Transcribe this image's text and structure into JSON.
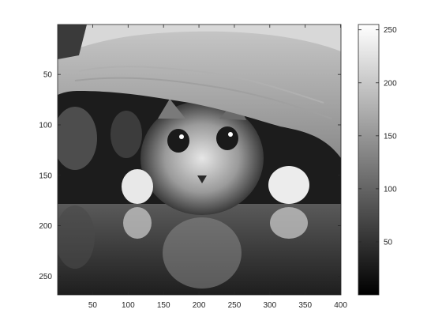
{
  "chart_data": {
    "type": "heatmap",
    "colormap": "gray",
    "image_description": "grayscale photograph of a kitten peeking out from under a blanket, paws forward, reflected on a glossy floor",
    "x_ticks": [
      50,
      100,
      150,
      200,
      250,
      300,
      350,
      400
    ],
    "y_ticks": [
      50,
      100,
      150,
      200,
      250
    ],
    "xlim": [
      0.5,
      400.5
    ],
    "ylim": [
      0.5,
      268.5
    ],
    "y_direction": "reverse",
    "colorbar": {
      "ticks": [
        50,
        100,
        150,
        200,
        250
      ],
      "clim": [
        0,
        255
      ],
      "location": "right"
    }
  },
  "colors": {
    "axis": "#262626",
    "background": "#ffffff"
  }
}
